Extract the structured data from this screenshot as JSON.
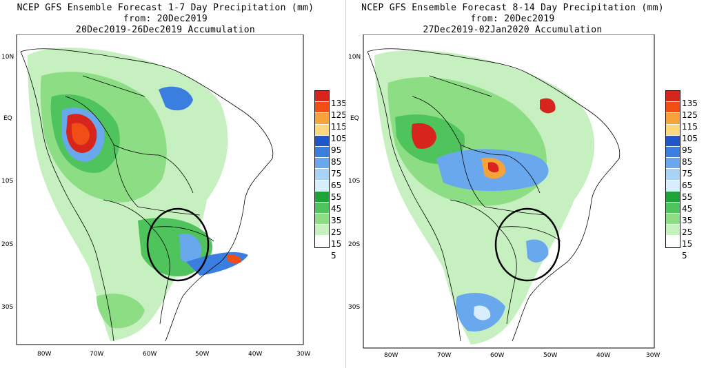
{
  "panels": [
    {
      "title_line1": "NCEP GFS Ensemble Forecast 1-7 Day Precipitation (mm)",
      "title_line2": "from: 20Dec2019",
      "title_line3": "20Dec2019-26Dec2019 Accumulation"
    },
    {
      "title_line1": "NCEP GFS Ensemble Forecast 8-14 Day Precipitation (mm)",
      "title_line2": "from: 20Dec2019",
      "title_line3": "27Dec2019-02Jan2020 Accumulation"
    }
  ],
  "lat_labels": [
    "10N",
    "EQ",
    "10S",
    "20S",
    "30S"
  ],
  "lon_labels": [
    "80W",
    "70W",
    "60W",
    "50W",
    "40W",
    "30W"
  ],
  "legend": {
    "labels": [
      "135",
      "125",
      "115",
      "105",
      "95",
      "85",
      "75",
      "65",
      "55",
      "45",
      "35",
      "25",
      "15",
      "5"
    ],
    "colors": [
      "#d7241c",
      "#f04e16",
      "#f7a339",
      "#fbd77e",
      "#1f56c8",
      "#3a7fe0",
      "#6aa8ee",
      "#a8d3f7",
      "#d9eefc",
      "#1ea33b",
      "#4fc45c",
      "#8ddd85",
      "#c6f0bf",
      "#ffffff"
    ]
  },
  "colors": {
    "circle": "#000000",
    "border": "#000000",
    "land_bg": "#ffffff"
  }
}
